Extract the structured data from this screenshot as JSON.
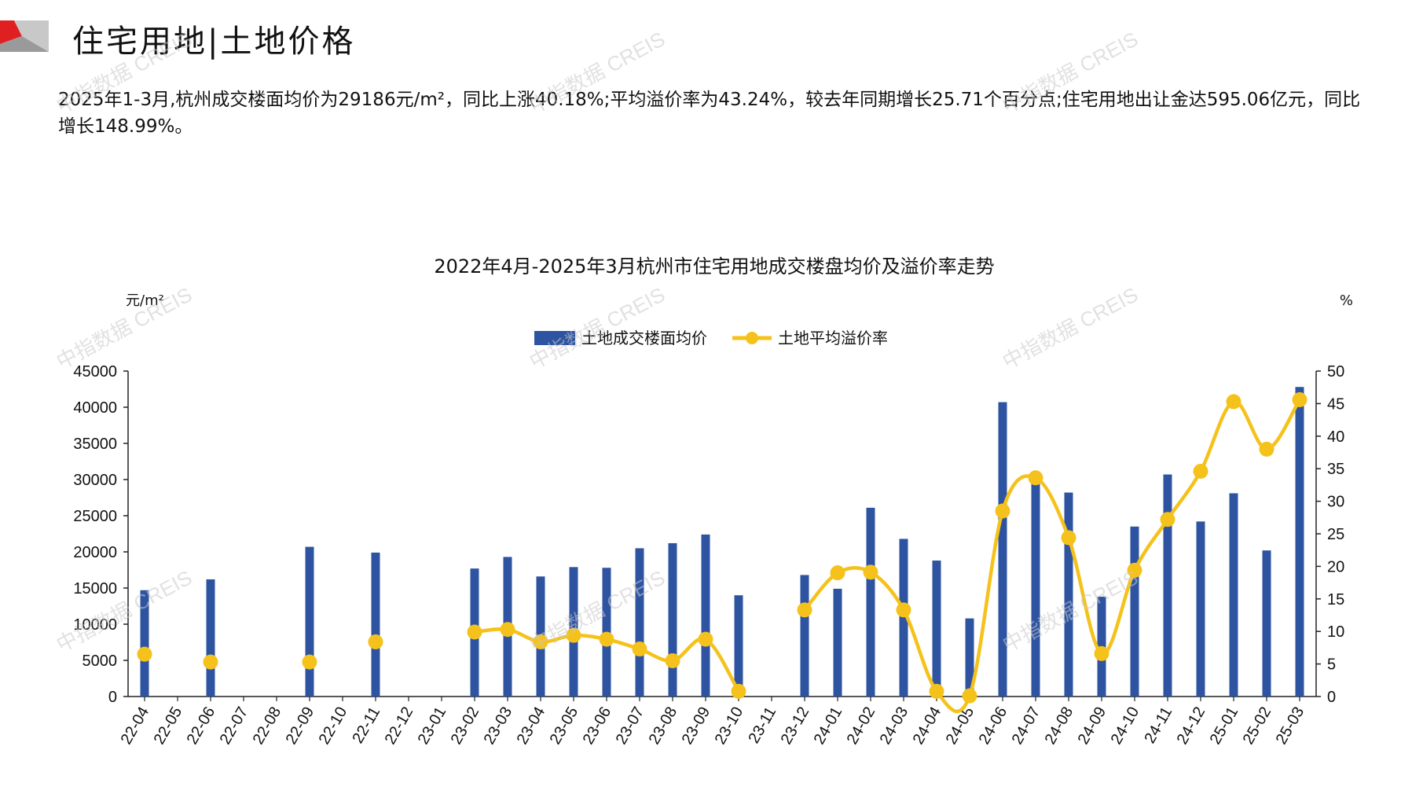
{
  "page": {
    "title": "住宅用地|土地价格",
    "summary": "2025年1-3月,杭州成交楼面均价为29186元/m²，同比上涨40.18%;平均溢价率为43.24%，较去年同期增长25.71个百分点;住宅用地出让金达595.06亿元，同比增长148.99%。",
    "watermark": "中指数据 CREIS"
  },
  "colors": {
    "bar": "#2E54A1",
    "line": "#F5C21B",
    "accent": "#E02020"
  },
  "chart_data": {
    "type": "bar+line",
    "title": "2022年4月-2025年3月杭州市住宅用地成交楼盘均价及溢价率走势",
    "y_left_label": "元/m²",
    "y_right_label": "%",
    "y_left_lim": [
      0,
      45000
    ],
    "y_left_ticks": [
      0,
      5000,
      10000,
      15000,
      20000,
      25000,
      30000,
      35000,
      40000,
      45000
    ],
    "y_right_lim": [
      0,
      50
    ],
    "y_right_ticks": [
      0,
      5,
      10,
      15,
      20,
      25,
      30,
      35,
      40,
      45,
      50
    ],
    "legend_position": "top-center",
    "grid": false,
    "categories": [
      "22-04",
      "22-05",
      "22-06",
      "22-07",
      "22-08",
      "22-09",
      "22-10",
      "22-11",
      "22-12",
      "23-01",
      "23-02",
      "23-03",
      "23-04",
      "23-05",
      "23-06",
      "23-07",
      "23-08",
      "23-09",
      "23-10",
      "23-11",
      "23-12",
      "24-01",
      "24-02",
      "24-03",
      "24-04",
      "24-05",
      "24-06",
      "24-07",
      "24-08",
      "24-09",
      "24-10",
      "24-11",
      "24-12",
      "25-01",
      "25-02",
      "25-03"
    ],
    "series": [
      {
        "name": "土地成交楼面均价",
        "type": "bar",
        "axis": "left",
        "values": [
          14700,
          null,
          16200,
          null,
          null,
          20700,
          null,
          19900,
          null,
          null,
          17700,
          19300,
          16600,
          17900,
          17800,
          20500,
          21200,
          22400,
          14000,
          null,
          16800,
          14900,
          26100,
          21800,
          18800,
          10800,
          40700,
          30000,
          28200,
          13800,
          23500,
          30700,
          24200,
          28100,
          20200,
          42800
        ]
      },
      {
        "name": "土地平均溢价率",
        "type": "line",
        "axis": "right",
        "values": [
          6.5,
          null,
          5.3,
          null,
          null,
          5.3,
          null,
          8.4,
          null,
          null,
          9.9,
          10.3,
          8.4,
          9.4,
          8.8,
          7.3,
          5.5,
          8.8,
          0.8,
          null,
          13.3,
          19.0,
          19.1,
          13.3,
          0.8,
          0.1,
          28.5,
          33.6,
          24.4,
          6.6,
          19.4,
          27.2,
          34.6,
          45.3,
          38.0,
          45.6
        ]
      }
    ]
  }
}
